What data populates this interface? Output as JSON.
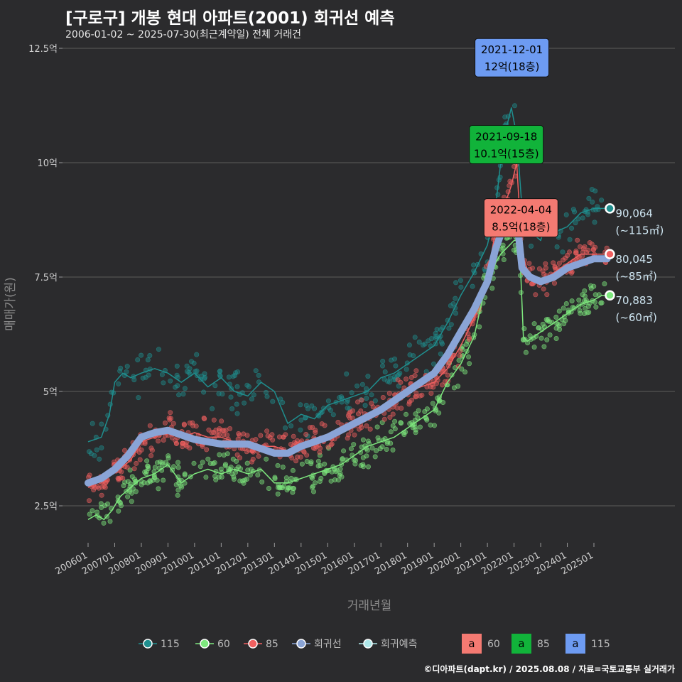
{
  "title": "[구로구] 개봉 현대 아파트(2001) 회귀선 예측",
  "subtitle": "2006-01-02 ~ 2025-07-30(최근계약일) 전체 거래건",
  "footer": "©디아파트(dapt.kr) / 2025.08.08 / 자료=국토교통부 실거래가",
  "colors": {
    "115": "#1f8f8f",
    "60": "#7ee87e",
    "85": "#f06060",
    "regression": "#8aa4d6",
    "forecast": "#aee8ea",
    "background": "#2b2b2d",
    "grid": "#5a5a5a"
  },
  "chart_data": {
    "type": "scatter",
    "xlabel": "거래년월",
    "ylabel": "매매가(원)",
    "x_ticks": [
      "200601",
      "200701",
      "200801",
      "200901",
      "201001",
      "201101",
      "201201",
      "201301",
      "201401",
      "201501",
      "201601",
      "201701",
      "201801",
      "201901",
      "202001",
      "202101",
      "202201",
      "202301",
      "202401",
      "202501"
    ],
    "y_ticks": [
      {
        "value": 2.5,
        "label": "2.5억"
      },
      {
        "value": 5,
        "label": "5억"
      },
      {
        "value": 7.5,
        "label": "7.5억"
      },
      {
        "value": 10,
        "label": "10억"
      },
      {
        "value": 12.5,
        "label": "12.5억"
      }
    ],
    "xlim": [
      2006.0,
      2025.6
    ],
    "ylim": [
      1.2,
      12.7
    ],
    "grid": true,
    "series": [
      {
        "name": "115",
        "color": "#1f8f8f",
        "x": [
          2006.0,
          2006.5,
          2006.8,
          2007.0,
          2007.3,
          2007.6,
          2008.0,
          2008.5,
          2009.0,
          2009.5,
          2010.0,
          2010.5,
          2011.0,
          2011.5,
          2012.0,
          2012.5,
          2013.0,
          2013.5,
          2014.0,
          2014.5,
          2015.0,
          2015.5,
          2016.0,
          2016.5,
          2017.0,
          2017.5,
          2018.0,
          2018.5,
          2019.0,
          2019.5,
          2020.0,
          2020.5,
          2021.0,
          2021.3,
          2021.6,
          2021.9,
          2022.1,
          2022.3,
          2022.6,
          2023.0,
          2023.3,
          2023.6,
          2024.0,
          2024.5,
          2025.0,
          2025.3,
          2025.5
        ],
        "y": [
          3.9,
          4.0,
          4.5,
          5.2,
          5.4,
          5.3,
          5.4,
          5.5,
          5.4,
          5.2,
          5.4,
          5.1,
          5.3,
          5.0,
          4.9,
          5.2,
          5.0,
          4.3,
          4.5,
          4.4,
          4.7,
          4.8,
          4.9,
          5.0,
          5.3,
          5.4,
          5.6,
          5.8,
          6.0,
          6.5,
          7.1,
          7.6,
          8.2,
          9.0,
          10.5,
          11.2,
          10.6,
          9.0,
          8.5,
          8.3,
          8.9,
          8.5,
          8.6,
          8.9,
          9.0,
          9.0,
          9.0
        ]
      },
      {
        "name": "60",
        "color": "#7ee87e",
        "x": [
          2006.0,
          2006.3,
          2006.6,
          2006.9,
          2007.2,
          2007.6,
          2008.0,
          2008.5,
          2009.0,
          2009.5,
          2010.0,
          2010.5,
          2011.0,
          2011.5,
          2012.0,
          2012.5,
          2013.0,
          2013.5,
          2014.0,
          2014.5,
          2015.0,
          2015.5,
          2016.0,
          2016.5,
          2017.0,
          2017.5,
          2018.0,
          2018.5,
          2019.0,
          2019.5,
          2020.0,
          2020.5,
          2021.0,
          2021.5,
          2022.0,
          2022.2,
          2022.35,
          2022.5,
          2023.0,
          2023.5,
          2024.0,
          2024.5,
          2025.0,
          2025.3,
          2025.5
        ],
        "y": [
          2.2,
          2.3,
          2.2,
          2.4,
          2.7,
          2.9,
          3.1,
          3.2,
          3.4,
          3.0,
          3.2,
          3.3,
          3.2,
          3.3,
          3.2,
          3.3,
          3.0,
          3.0,
          3.1,
          3.2,
          3.3,
          3.4,
          3.6,
          3.8,
          3.9,
          4.0,
          4.2,
          4.4,
          4.6,
          5.2,
          5.6,
          6.2,
          7.5,
          8.0,
          8.3,
          8.3,
          6.2,
          6.1,
          6.3,
          6.5,
          6.7,
          6.9,
          7.0,
          7.1,
          7.1
        ]
      },
      {
        "name": "85",
        "color": "#f06060",
        "x": [
          2006.0,
          2006.3,
          2006.6,
          2006.9,
          2007.2,
          2007.6,
          2008.0,
          2008.5,
          2009.0,
          2009.5,
          2010.0,
          2010.5,
          2011.0,
          2011.5,
          2012.0,
          2012.5,
          2013.0,
          2013.5,
          2014.0,
          2014.5,
          2015.0,
          2015.5,
          2016.0,
          2016.5,
          2017.0,
          2017.5,
          2018.0,
          2018.5,
          2019.0,
          2019.5,
          2020.0,
          2020.5,
          2021.0,
          2021.3,
          2021.6,
          2021.9,
          2022.1,
          2022.3,
          2022.6,
          2023.0,
          2023.5,
          2024.0,
          2024.5,
          2025.0,
          2025.3,
          2025.5
        ],
        "y": [
          2.9,
          3.0,
          3.1,
          3.2,
          3.3,
          3.5,
          3.9,
          4.0,
          4.2,
          4.0,
          4.1,
          4.0,
          4.0,
          3.9,
          3.8,
          3.8,
          3.8,
          3.7,
          3.8,
          3.9,
          4.0,
          4.2,
          4.3,
          4.4,
          4.6,
          4.8,
          5.0,
          5.1,
          5.2,
          5.5,
          6.0,
          6.6,
          7.5,
          8.5,
          9.0,
          9.5,
          10.0,
          8.0,
          7.5,
          7.4,
          7.6,
          7.8,
          8.0,
          8.0,
          8.0,
          8.0
        ]
      },
      {
        "name": "회귀선",
        "color": "#8aa4d6",
        "x": [
          2006.0,
          2006.5,
          2007.0,
          2007.5,
          2008.0,
          2008.5,
          2009.0,
          2009.5,
          2010.0,
          2010.5,
          2011.0,
          2011.5,
          2012.0,
          2012.5,
          2013.0,
          2013.5,
          2014.0,
          2014.5,
          2015.0,
          2015.5,
          2016.0,
          2016.5,
          2017.0,
          2017.5,
          2018.0,
          2018.5,
          2019.0,
          2019.5,
          2020.0,
          2020.5,
          2021.0,
          2021.3,
          2021.6,
          2021.9,
          2022.1,
          2022.3,
          2022.6,
          2023.0,
          2023.5,
          2024.0,
          2024.5,
          2025.0,
          2025.3,
          2025.5
        ],
        "y": [
          3.0,
          3.1,
          3.3,
          3.6,
          4.0,
          4.1,
          4.15,
          4.05,
          3.95,
          3.9,
          3.85,
          3.85,
          3.85,
          3.75,
          3.65,
          3.65,
          3.8,
          3.9,
          4.0,
          4.15,
          4.3,
          4.45,
          4.6,
          4.8,
          5.0,
          5.2,
          5.4,
          5.8,
          6.3,
          6.8,
          7.4,
          8.1,
          8.6,
          8.9,
          8.8,
          7.7,
          7.5,
          7.4,
          7.5,
          7.7,
          7.8,
          7.9,
          7.9,
          7.9
        ]
      }
    ],
    "forecast": [
      {
        "name": "115",
        "value": 90064,
        "label": "90,064",
        "area": "(~115㎡)",
        "y": 9.0,
        "x": 2025.6
      },
      {
        "name": "85",
        "value": 80045,
        "label": "80,045",
        "area": "(~85㎡)",
        "y": 8.0,
        "x": 2025.6
      },
      {
        "name": "60",
        "value": 70883,
        "label": "70,883",
        "area": "(~60㎡)",
        "y": 7.1,
        "x": 2025.6
      }
    ],
    "annotations": [
      {
        "date": "2021-12-01",
        "text": "12억(18층)",
        "color": "#6d9bf2",
        "x": 2021.92,
        "y": 12.0
      },
      {
        "date": "2021-09-18",
        "text": "10.1억(15층)",
        "color": "#11b33a",
        "x": 2021.71,
        "y": 10.1
      },
      {
        "date": "2022-04-04",
        "text": "8.5억(18층)",
        "color": "#f47a72",
        "x": 2022.26,
        "y": 8.5
      }
    ],
    "legend": {
      "placement": "bottom",
      "items": [
        {
          "label": "115",
          "color": "#1f8f8f"
        },
        {
          "label": "60",
          "color": "#7ee87e"
        },
        {
          "label": "85",
          "color": "#f06060"
        },
        {
          "label": "회귀선",
          "color": "#8aa4d6"
        },
        {
          "label": "회귀예측",
          "color": "#aee8ea"
        }
      ],
      "boxes": [
        {
          "glyph": "a",
          "label": "60",
          "color": "#f47a72"
        },
        {
          "glyph": "a",
          "label": "85",
          "color": "#11b33a"
        },
        {
          "glyph": "a",
          "label": "115",
          "color": "#6d9bf2"
        }
      ]
    }
  }
}
